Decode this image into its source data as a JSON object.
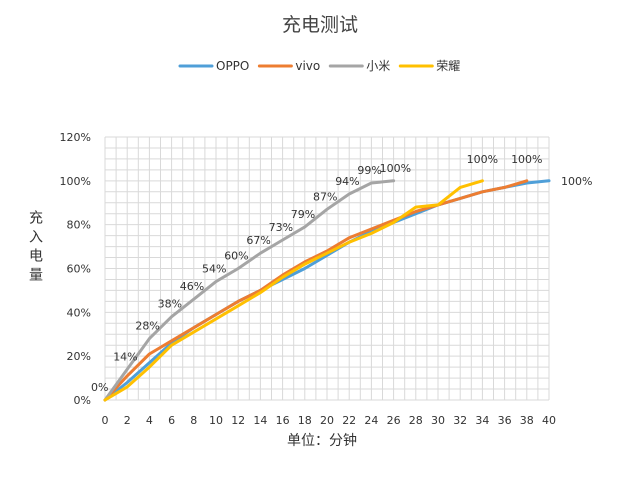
{
  "chart_data": {
    "type": "line",
    "title": "充电测试",
    "xlabel": "单位：分钟",
    "ylabel": "充入电量",
    "xlim": [
      0,
      40
    ],
    "ylim": [
      0,
      120
    ],
    "x_ticks": [
      0,
      2,
      4,
      6,
      8,
      10,
      12,
      14,
      16,
      18,
      20,
      22,
      24,
      26,
      28,
      30,
      32,
      34,
      36,
      38,
      40
    ],
    "y_ticks": [
      "0%",
      "20%",
      "40%",
      "60%",
      "80%",
      "100%",
      "120%"
    ],
    "grid": true,
    "legend_position": "top",
    "series": [
      {
        "name": "OPPO",
        "color": "#4f9fd8",
        "points": [
          [
            0,
            0
          ],
          [
            2,
            8
          ],
          [
            4,
            17
          ],
          [
            6,
            26
          ],
          [
            8,
            33
          ],
          [
            10,
            39
          ],
          [
            12,
            45
          ],
          [
            14,
            50
          ],
          [
            16,
            55
          ],
          [
            18,
            60
          ],
          [
            20,
            66
          ],
          [
            22,
            72
          ],
          [
            24,
            77
          ],
          [
            26,
            81
          ],
          [
            28,
            85
          ],
          [
            30,
            89
          ],
          [
            32,
            92
          ],
          [
            34,
            95
          ],
          [
            36,
            97
          ],
          [
            38,
            99
          ],
          [
            40,
            100
          ]
        ]
      },
      {
        "name": "vivo",
        "color": "#ed7d31",
        "points": [
          [
            0,
            0
          ],
          [
            2,
            11
          ],
          [
            4,
            21
          ],
          [
            6,
            27
          ],
          [
            8,
            33
          ],
          [
            10,
            39
          ],
          [
            12,
            45
          ],
          [
            14,
            50
          ],
          [
            16,
            57
          ],
          [
            18,
            63
          ],
          [
            20,
            68
          ],
          [
            22,
            74
          ],
          [
            24,
            78
          ],
          [
            26,
            82
          ],
          [
            28,
            86
          ],
          [
            30,
            89
          ],
          [
            32,
            92
          ],
          [
            34,
            95
          ],
          [
            36,
            97
          ],
          [
            38,
            100
          ]
        ]
      },
      {
        "name": "小米",
        "color": "#a5a5a5",
        "points": [
          [
            0,
            0
          ],
          [
            2,
            14
          ],
          [
            4,
            28
          ],
          [
            6,
            38
          ],
          [
            8,
            46
          ],
          [
            10,
            54
          ],
          [
            12,
            60
          ],
          [
            14,
            67
          ],
          [
            16,
            73
          ],
          [
            18,
            79
          ],
          [
            20,
            87
          ],
          [
            22,
            94
          ],
          [
            24,
            99
          ],
          [
            26,
            100
          ]
        ],
        "labels": [
          "0%",
          "14%",
          "28%",
          "38%",
          "46%",
          "54%",
          "60%",
          "67%",
          "73%",
          "79%",
          "87%",
          "94%",
          "99%",
          "100%"
        ]
      },
      {
        "name": "荣耀",
        "color": "#ffc000",
        "points": [
          [
            0,
            0
          ],
          [
            2,
            6
          ],
          [
            4,
            15
          ],
          [
            6,
            25
          ],
          [
            8,
            31
          ],
          [
            10,
            37
          ],
          [
            12,
            43
          ],
          [
            14,
            49
          ],
          [
            16,
            56
          ],
          [
            18,
            62
          ],
          [
            20,
            67
          ],
          [
            22,
            72
          ],
          [
            24,
            76
          ],
          [
            26,
            81
          ],
          [
            28,
            88
          ],
          [
            30,
            89
          ],
          [
            32,
            97
          ],
          [
            34,
            100
          ]
        ]
      }
    ],
    "end_labels": [
      {
        "series": "荣耀",
        "text": "100%"
      },
      {
        "series": "vivo",
        "text": "100%"
      },
      {
        "series": "OPPO",
        "text": "100%"
      }
    ]
  }
}
